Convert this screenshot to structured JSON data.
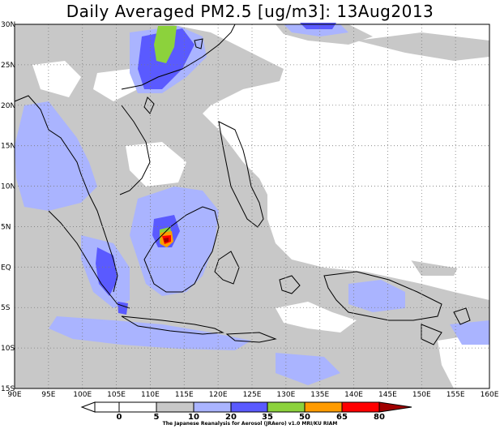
{
  "title": "Daily Averaged PM2.5 [ug/m3]: 13Aug2013",
  "credit": "The Japanese Reanalysis for Aerosol (JRAero) v1.0 MRI/KU RIAM",
  "map": {
    "lon_range": [
      90,
      160
    ],
    "lat_range": [
      -15,
      30
    ],
    "lon_ticks": [
      "90E",
      "95E",
      "100E",
      "105E",
      "110E",
      "115E",
      "120E",
      "125E",
      "130E",
      "135E",
      "140E",
      "145E",
      "150E",
      "155E",
      "160E"
    ],
    "lat_ticks": [
      "15S",
      "10S",
      "5S",
      "EQ",
      "5N",
      "10N",
      "15N",
      "20N",
      "25N",
      "30N"
    ],
    "grid": "dotted"
  },
  "colorbar": {
    "labels": [
      "0",
      "5",
      "10",
      "20",
      "35",
      "50",
      "65",
      "80"
    ],
    "colors": [
      "#ffffff",
      "#ffffff",
      "#c8c8c8",
      "#aab4ff",
      "#5a5aff",
      "#8cd23c",
      "#ff9b00",
      "#ff0000",
      "#a00000"
    ]
  }
}
